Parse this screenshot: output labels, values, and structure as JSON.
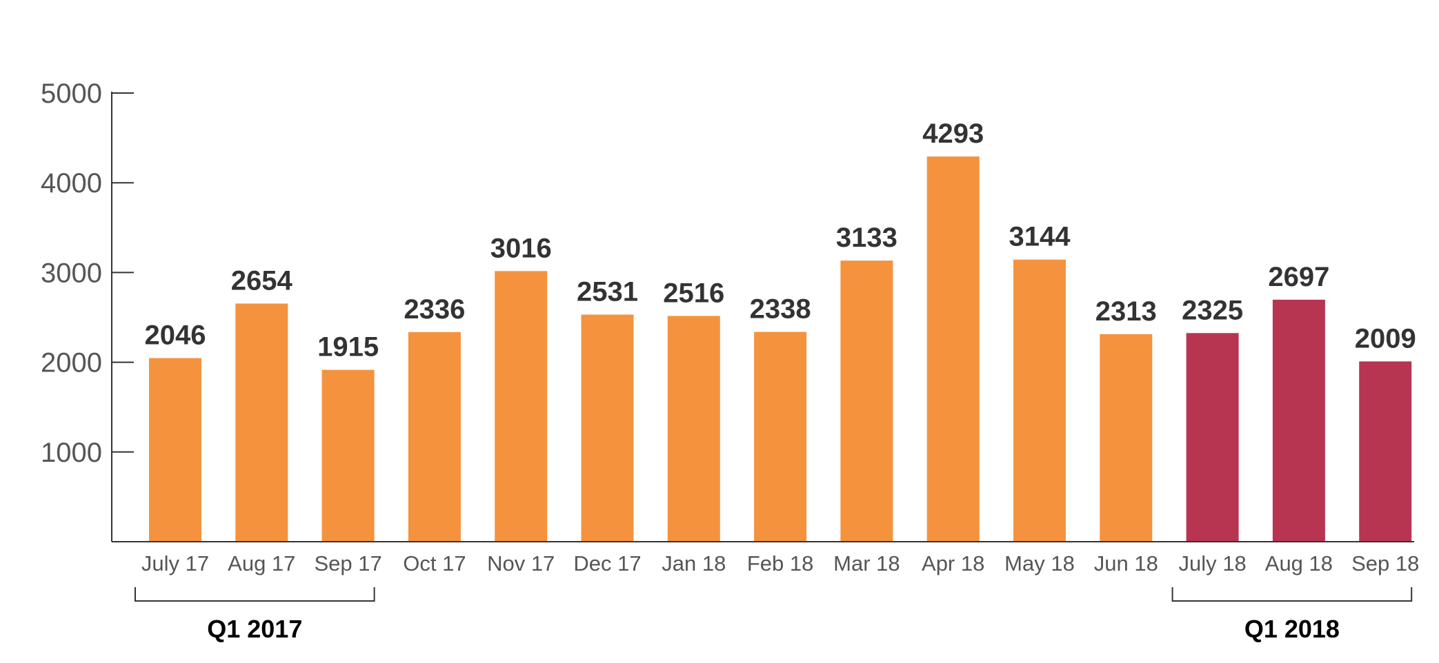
{
  "chart_data": {
    "type": "bar",
    "categories": [
      "July 17",
      "Aug 17",
      "Sep 17",
      "Oct 17",
      "Nov 17",
      "Dec 17",
      "Jan 18",
      "Feb 18",
      "Mar 18",
      "Apr 18",
      "May 18",
      "Jun 18",
      "July 18",
      "Aug 18",
      "Sep 18"
    ],
    "values": [
      2046,
      2654,
      1915,
      2336,
      3016,
      2531,
      2516,
      2338,
      3133,
      4293,
      3144,
      2313,
      2325,
      2697,
      2009
    ],
    "bar_colors": [
      "#F5923E",
      "#F5923E",
      "#F5923E",
      "#F5923E",
      "#F5923E",
      "#F5923E",
      "#F5923E",
      "#F5923E",
      "#F5923E",
      "#F5923E",
      "#F5923E",
      "#F5923E",
      "#B83552",
      "#B83552",
      "#B83552"
    ],
    "yticks": [
      1000,
      2000,
      3000,
      4000,
      5000
    ],
    "ylim": [
      0,
      5000
    ],
    "grid": false,
    "groups": [
      {
        "label": "Q1 2017",
        "start": 0,
        "end": 2
      },
      {
        "label": "Q1 2018",
        "start": 12,
        "end": 14
      }
    ],
    "title": "",
    "xlabel": "",
    "ylabel": ""
  }
}
